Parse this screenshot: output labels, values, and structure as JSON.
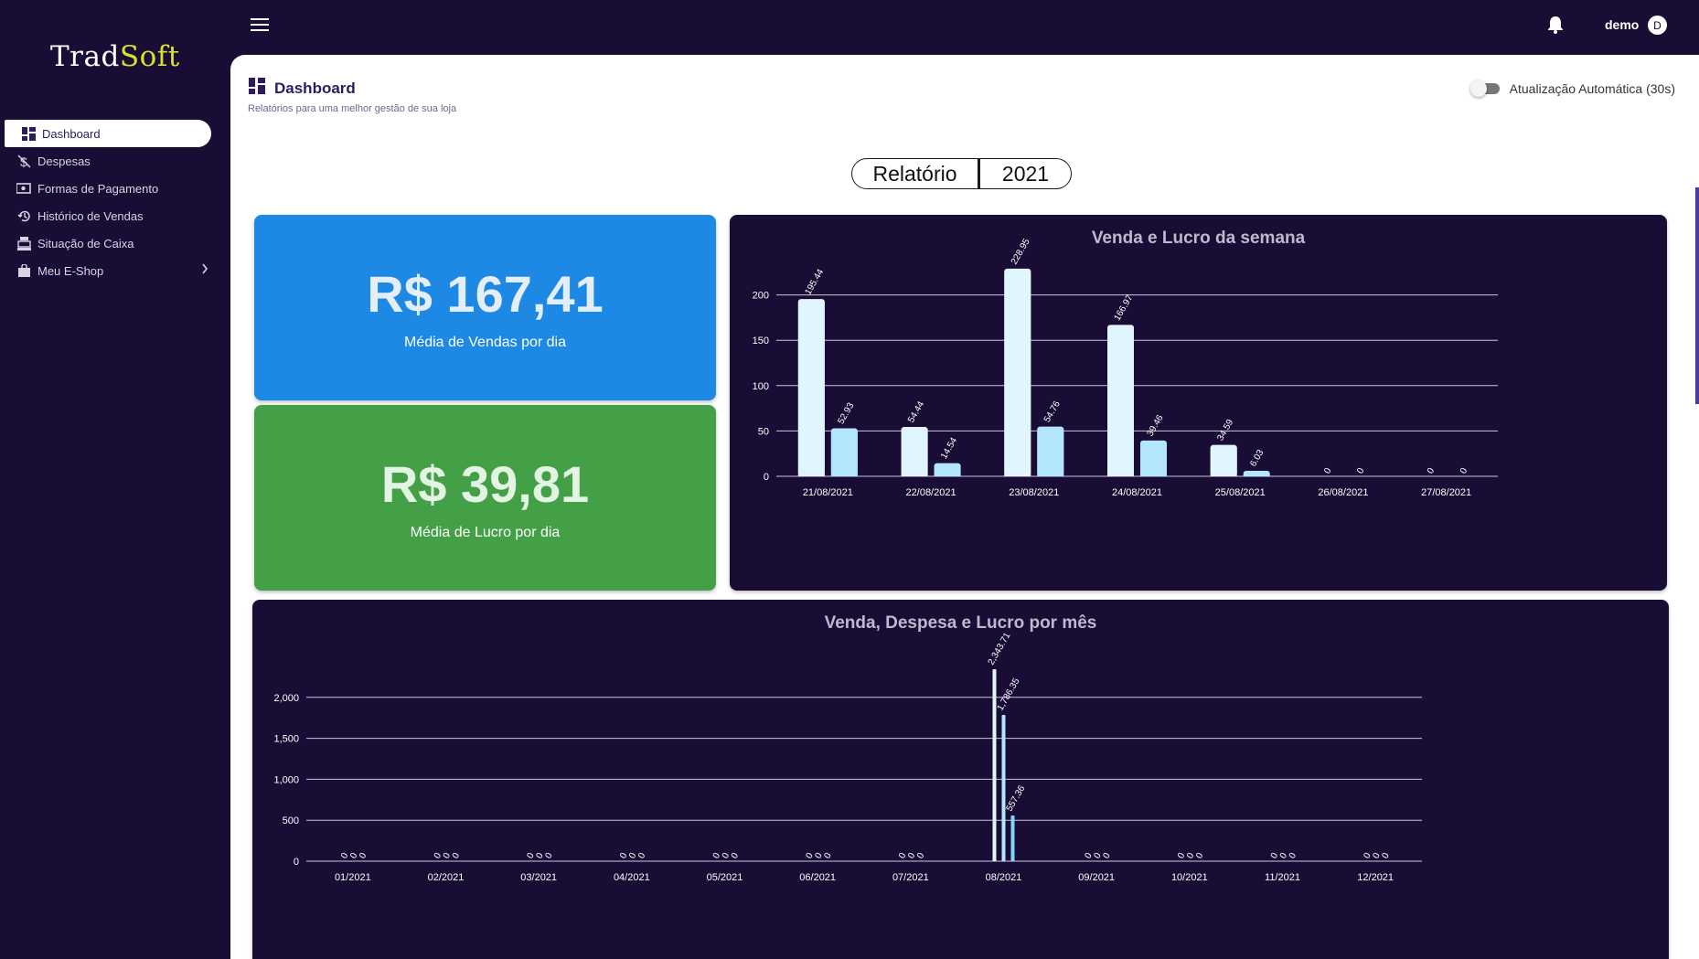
{
  "brand": {
    "part1": "Trad",
    "part2": "Soft"
  },
  "sidebar": {
    "items": [
      {
        "label": "Dashboard",
        "icon": "dashboard-icon",
        "active": true
      },
      {
        "label": "Despesas",
        "icon": "money-off-icon"
      },
      {
        "label": "Formas de Pagamento",
        "icon": "payments-icon"
      },
      {
        "label": "Histórico de Vendas",
        "icon": "history-icon"
      },
      {
        "label": "Situação de Caixa",
        "icon": "cash-register-icon"
      },
      {
        "label": "Meu E-Shop",
        "icon": "shopping-bag-icon",
        "has_children": true
      }
    ]
  },
  "topbar": {
    "user": "demo",
    "avatar_initial": "D"
  },
  "header": {
    "title": "Dashboard",
    "subtitle": "Relatórios para uma melhor gestão de sua loja",
    "auto_update_label": "Atualização Automática (30s)",
    "auto_update_on": false
  },
  "selector": {
    "report_label": "Relatório",
    "year": "2021"
  },
  "cards": {
    "sales_avg": {
      "value": "R$ 167,41",
      "label": "Média de Vendas por dia",
      "color": "#1e88e5"
    },
    "profit_avg": {
      "value": "R$ 39,81",
      "label": "Média de Lucro por dia",
      "color": "#43a047"
    }
  },
  "chart_data": [
    {
      "type": "bar",
      "title": "Venda e Lucro da semana",
      "categories": [
        "21/08/2021",
        "22/08/2021",
        "23/08/2021",
        "24/08/2021",
        "25/08/2021",
        "26/08/2021",
        "27/08/2021"
      ],
      "series": [
        {
          "values": [
            195.44,
            54.44,
            228.95,
            166.97,
            34.59,
            0,
            0
          ],
          "color": "#e1f5fe"
        },
        {
          "values": [
            52.93,
            14.54,
            54.76,
            39.46,
            6.03,
            0,
            0
          ],
          "color": "#b3e5fc"
        }
      ],
      "ylim": [
        0,
        250
      ],
      "yticks": [
        0,
        50,
        100,
        150,
        200
      ],
      "grid": true
    },
    {
      "type": "bar",
      "title": "Venda, Despesa e Lucro por mês",
      "categories": [
        "01/2021",
        "02/2021",
        "03/2021",
        "04/2021",
        "05/2021",
        "06/2021",
        "07/2021",
        "08/2021",
        "09/2021",
        "10/2021",
        "11/2021",
        "12/2021"
      ],
      "series": [
        {
          "values": [
            0,
            0,
            0,
            0,
            0,
            0,
            0,
            2343.71,
            0,
            0,
            0,
            0
          ],
          "labels": [
            "0",
            "0",
            "0",
            "0",
            "0",
            "0",
            "0",
            "2,343.71",
            "0",
            "0",
            "0",
            "0"
          ],
          "color": "#e1f5fe"
        },
        {
          "values": [
            0,
            0,
            0,
            0,
            0,
            0,
            0,
            1786.35,
            0,
            0,
            0,
            0
          ],
          "labels": [
            "0",
            "0",
            "0",
            "0",
            "0",
            "0",
            "0",
            "1,786.35",
            "0",
            "0",
            "0",
            "0"
          ],
          "color": "#b3e5fc"
        },
        {
          "values": [
            0,
            0,
            0,
            0,
            0,
            0,
            0,
            557.36,
            0,
            0,
            0,
            0
          ],
          "labels": [
            "0",
            "0",
            "0",
            "0",
            "0",
            "0",
            "0",
            "557.36",
            "0",
            "0",
            "0",
            "0"
          ],
          "color": "#81d4fa"
        }
      ],
      "ylim": [
        0,
        2500
      ],
      "yticks": [
        0,
        500,
        1000,
        1500,
        2000
      ],
      "ytick_labels": [
        "0",
        "500",
        "1,000",
        "1,500",
        "2,000"
      ],
      "grid": true
    }
  ]
}
